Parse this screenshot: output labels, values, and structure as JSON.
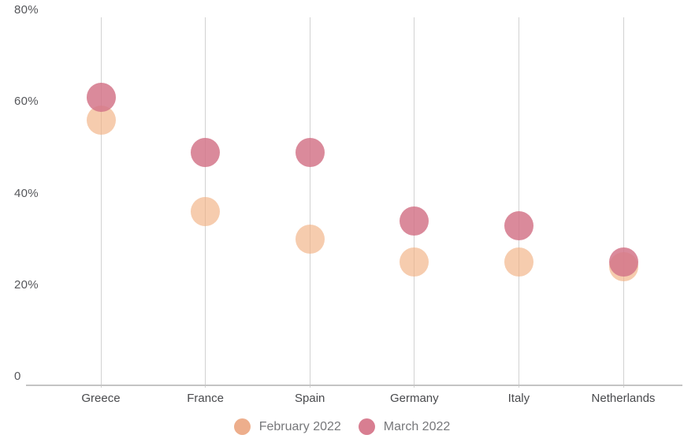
{
  "chart_data": {
    "type": "scatter",
    "title": "",
    "categories": [
      "Greece",
      "France",
      "Spain",
      "Germany",
      "Italy",
      "Netherlands"
    ],
    "series": [
      {
        "name": "February 2022",
        "values": [
          56,
          36,
          30,
          25,
          25,
          24
        ],
        "color": "#F1B183",
        "opacity": 0.65,
        "rendered_color": "#F6CCAE",
        "legend_color": "#EDAE8C"
      },
      {
        "name": "March 2022",
        "values": [
          61,
          49,
          49,
          34,
          33,
          25
        ],
        "color": "#D4758A",
        "opacity": 0.85,
        "rendered_color": "#DA899B",
        "legend_color": "#D87E91"
      }
    ],
    "y_axis": {
      "min": 0,
      "max": 80,
      "ticks": [
        {
          "value": 0,
          "label": "0"
        },
        {
          "value": 20,
          "label": "20%"
        },
        {
          "value": 40,
          "label": "40%"
        },
        {
          "value": 60,
          "label": "60%"
        },
        {
          "value": 80,
          "label": "80%"
        }
      ]
    },
    "grid": "vertical-only",
    "legend_position": "bottom-center",
    "colors": {
      "gridline": "#d2d2d2",
      "axis_line": "#c4c4c4",
      "y_label_text": "#56575b",
      "x_label_text": "#494a4d",
      "legend_text": "#77787b",
      "background": "#ffffff"
    }
  }
}
